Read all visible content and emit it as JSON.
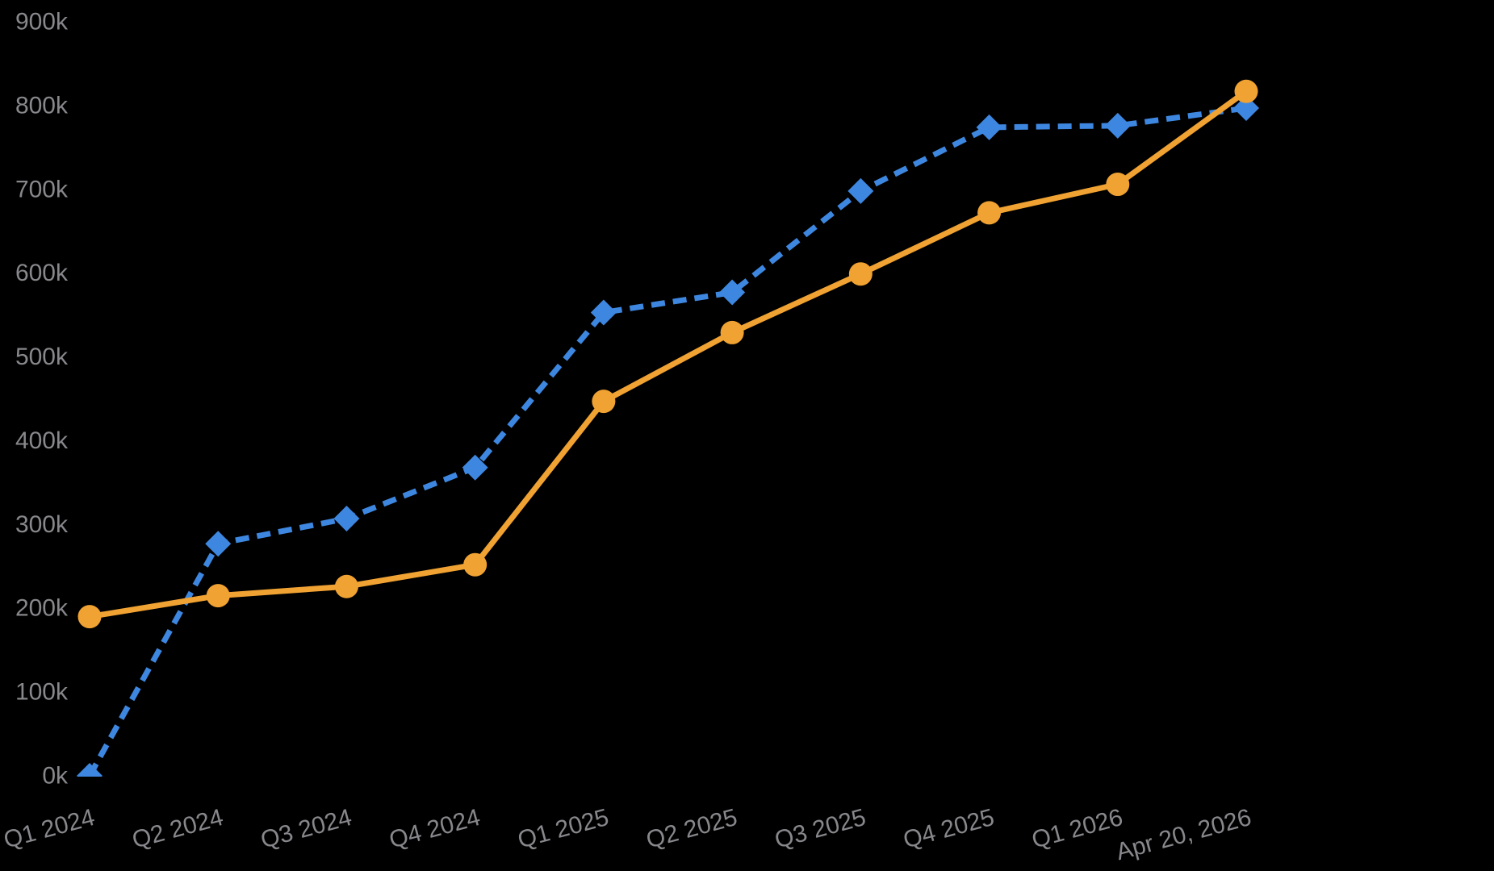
{
  "chart_data": {
    "type": "line",
    "title": "",
    "legend": false,
    "grid": false,
    "background_color": "#000000",
    "axis_label_color": "#87878C",
    "categories": [
      "Q1 2024",
      "Q2 2024",
      "Q3 2024",
      "Q4 2024",
      "Q1 2025",
      "Q2 2025",
      "Q3 2025",
      "Q4 2025",
      "Q1 2026",
      "Apr 20, 2026"
    ],
    "x_axis": {
      "label_rotation_deg": -15,
      "tick_labels": [
        "Q1 2024",
        "Q2 2024",
        "Q3 2024",
        "Q4 2024",
        "Q1 2025",
        "Q2 2025",
        "Q3 2025",
        "Q4 2025",
        "Q1 2026",
        "Apr 20, 2026"
      ]
    },
    "y_axis": {
      "min": 0,
      "max": 900,
      "step": 100,
      "unit": "k",
      "tick_labels": [
        "0k",
        "100k",
        "200k",
        "300k",
        "400k",
        "500k",
        "600k",
        "700k",
        "800k",
        "900k"
      ]
    },
    "series": [
      {
        "name": "series-blue-dashed",
        "color": "#3E87E0",
        "line_style": "dashed",
        "marker": "diamond",
        "values_k": [
          0,
          277,
          307,
          368,
          553,
          577,
          698,
          774,
          776,
          797
        ]
      },
      {
        "name": "series-orange-solid",
        "color": "#F0A232",
        "line_style": "solid",
        "marker": "circle",
        "values_k": [
          190,
          215,
          226,
          252,
          447,
          529,
          599,
          672,
          706,
          817
        ]
      }
    ]
  }
}
